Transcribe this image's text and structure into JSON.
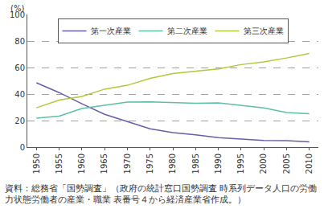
{
  "chart_data": {
    "type": "line",
    "ylabel": "(%)",
    "x": [
      1950,
      1955,
      1960,
      1965,
      1970,
      1975,
      1980,
      1985,
      1990,
      1995,
      2000,
      2005,
      2010
    ],
    "series": [
      {
        "name": "第一次産業",
        "color": "#6b5ca5",
        "values": [
          48.5,
          41.1,
          32.7,
          24.7,
          19.3,
          13.8,
          10.9,
          9.3,
          7.1,
          6.0,
          5.0,
          4.8,
          4.0
        ]
      },
      {
        "name": "第二次産業",
        "color": "#5dbfa6",
        "values": [
          21.8,
          23.4,
          29.1,
          31.5,
          34.0,
          34.1,
          33.6,
          33.1,
          33.3,
          31.6,
          29.5,
          26.1,
          25.2
        ]
      },
      {
        "name": "第三次産業",
        "color": "#b3c83c",
        "values": [
          29.6,
          35.5,
          38.2,
          43.7,
          46.6,
          51.8,
          55.4,
          57.3,
          59.0,
          62.2,
          64.3,
          67.2,
          70.6
        ]
      }
    ],
    "xlim": [
      1948,
      2012
    ],
    "xticks": [
      1950,
      1955,
      1960,
      1965,
      1970,
      1975,
      1980,
      1985,
      1990,
      1995,
      2000,
      2005,
      2010
    ],
    "ylim": [
      0,
      100
    ],
    "yticks": [
      0,
      20,
      40,
      60,
      80,
      100
    ],
    "grid": true,
    "legend": "top",
    "source": "資料：総務省「国勢調査」（政府の統計窓口国勢調査 時系列データ人口の労働力状態労働者の産業・職業 表番号４から経済産業省作成。）"
  }
}
